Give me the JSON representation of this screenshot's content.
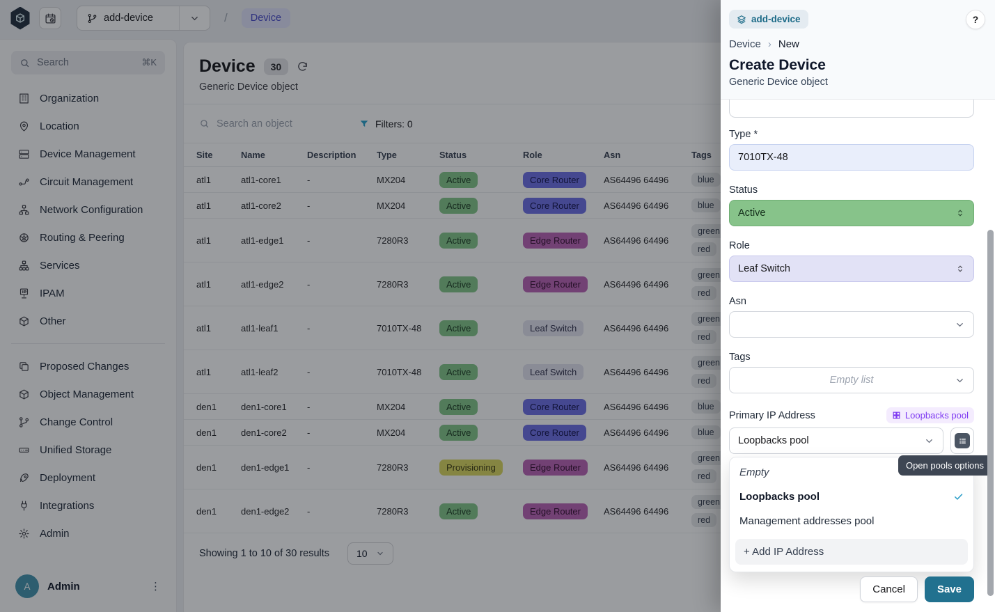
{
  "topbar": {
    "branch": "add-device",
    "slash": "/",
    "breadcrumb": "Device"
  },
  "sidebar": {
    "search_label": "Search",
    "search_shortcut": "⌘K",
    "groups": [
      [
        {
          "icon": "organization-icon",
          "label": "Organization"
        },
        {
          "icon": "location-icon",
          "label": "Location"
        },
        {
          "icon": "device-management-icon",
          "label": "Device Management"
        },
        {
          "icon": "circuit-management-icon",
          "label": "Circuit Management"
        },
        {
          "icon": "network-configuration-icon",
          "label": "Network Configuration"
        },
        {
          "icon": "routing-peering-icon",
          "label": "Routing & Peering"
        },
        {
          "icon": "services-icon",
          "label": "Services"
        },
        {
          "icon": "ipam-icon",
          "label": "IPAM"
        },
        {
          "icon": "other-icon",
          "label": "Other"
        }
      ],
      [
        {
          "icon": "proposed-changes-icon",
          "label": "Proposed Changes"
        },
        {
          "icon": "object-management-icon",
          "label": "Object Management"
        },
        {
          "icon": "change-control-icon",
          "label": "Change Control"
        },
        {
          "icon": "unified-storage-icon",
          "label": "Unified Storage"
        },
        {
          "icon": "deployment-icon",
          "label": "Deployment"
        },
        {
          "icon": "integrations-icon",
          "label": "Integrations"
        },
        {
          "icon": "admin-icon",
          "label": "Admin"
        }
      ]
    ],
    "user": {
      "initial": "A",
      "name": "Admin"
    }
  },
  "main": {
    "title": "Device",
    "count": "30",
    "subtitle": "Generic Device object",
    "search_placeholder": "Search an object",
    "filters": "Filters: 0",
    "table": {
      "headers": [
        "Site",
        "Name",
        "Description",
        "Type",
        "Status",
        "Role",
        "Asn",
        "Tags"
      ],
      "rows": [
        {
          "site": "atl1",
          "name": "atl1-core1",
          "description": "-",
          "type": "MX204",
          "status": "Active",
          "role": "Core Router",
          "asn": "AS64496 64496",
          "tags": [
            "blue"
          ]
        },
        {
          "site": "atl1",
          "name": "atl1-core2",
          "description": "-",
          "type": "MX204",
          "status": "Active",
          "role": "Core Router",
          "asn": "AS64496 64496",
          "tags": [
            "blue"
          ]
        },
        {
          "site": "atl1",
          "name": "atl1-edge1",
          "description": "-",
          "type": "7280R3",
          "status": "Active",
          "role": "Edge Router",
          "asn": "AS64496 64496",
          "tags": [
            "green",
            "red"
          ]
        },
        {
          "site": "atl1",
          "name": "atl1-edge2",
          "description": "-",
          "type": "7280R3",
          "status": "Active",
          "role": "Edge Router",
          "asn": "AS64496 64496",
          "tags": [
            "green",
            "red"
          ]
        },
        {
          "site": "atl1",
          "name": "atl1-leaf1",
          "description": "-",
          "type": "7010TX-48",
          "status": "Active",
          "role": "Leaf Switch",
          "asn": "AS64496 64496",
          "tags": [
            "green",
            "red"
          ]
        },
        {
          "site": "atl1",
          "name": "atl1-leaf2",
          "description": "-",
          "type": "7010TX-48",
          "status": "Active",
          "role": "Leaf Switch",
          "asn": "AS64496 64496",
          "tags": [
            "green",
            "red"
          ]
        },
        {
          "site": "den1",
          "name": "den1-core1",
          "description": "-",
          "type": "MX204",
          "status": "Active",
          "role": "Core Router",
          "asn": "AS64496 64496",
          "tags": [
            "blue"
          ]
        },
        {
          "site": "den1",
          "name": "den1-core2",
          "description": "-",
          "type": "MX204",
          "status": "Active",
          "role": "Core Router",
          "asn": "AS64496 64496",
          "tags": [
            "blue"
          ]
        },
        {
          "site": "den1",
          "name": "den1-edge1",
          "description": "-",
          "type": "7280R3",
          "status": "Provisioning",
          "role": "Edge Router",
          "asn": "AS64496 64496",
          "tags": [
            "green",
            "red"
          ]
        },
        {
          "site": "den1",
          "name": "den1-edge2",
          "description": "-",
          "type": "7280R3",
          "status": "Active",
          "role": "Edge Router",
          "asn": "AS64496 64496",
          "tags": [
            "green",
            "red"
          ]
        }
      ]
    },
    "footer": {
      "summary": "Showing 1 to 10 of 30 results",
      "page_size": "10"
    }
  },
  "panel": {
    "branch_badge": "add-device",
    "help": "?",
    "crumb": [
      "Device",
      "New"
    ],
    "crumb_sep": "›",
    "title": "Create Device",
    "subtitle": "Generic Device object",
    "fields": {
      "type_label": "Type *",
      "type_value": "7010TX-48",
      "status_label": "Status",
      "status_value": "Active",
      "role_label": "Role",
      "role_value": "Leaf Switch",
      "asn_label": "Asn",
      "tags_label": "Tags",
      "tags_placeholder": "Empty list",
      "ip_label": "Primary IP Address",
      "ip_badge": "Loopbacks pool",
      "ip_value": "Loopbacks pool"
    },
    "tooltip": "Open pools options",
    "dropdown": {
      "items": [
        {
          "label": "Empty",
          "variant": "empty",
          "checked": false
        },
        {
          "label": "Loopbacks pool",
          "variant": "selected",
          "checked": true
        },
        {
          "label": "Management addresses pool",
          "variant": "normal",
          "checked": false
        }
      ],
      "add_label": "+ Add IP Address"
    },
    "actions": {
      "cancel": "Cancel",
      "save": "Save"
    }
  },
  "colors": {
    "status": {
      "Active": {
        "bg": "#84c688",
        "text": "#1b3a22"
      },
      "Provisioning": {
        "bg": "#dbd75f",
        "text": "#3d3b10"
      }
    },
    "role": {
      "Core Router": {
        "bg": "#6d6fe6",
        "text": "#12124a"
      },
      "Edge Router": {
        "bg": "#bb63b5",
        "text": "#350f31"
      },
      "Leaf Switch": {
        "bg": "#e3e3f0",
        "text": "#32324c"
      }
    },
    "accent_save": "#21718f",
    "accent_branch": "#1b6a87",
    "breadcrumb_pill": "#e0e2fa"
  }
}
